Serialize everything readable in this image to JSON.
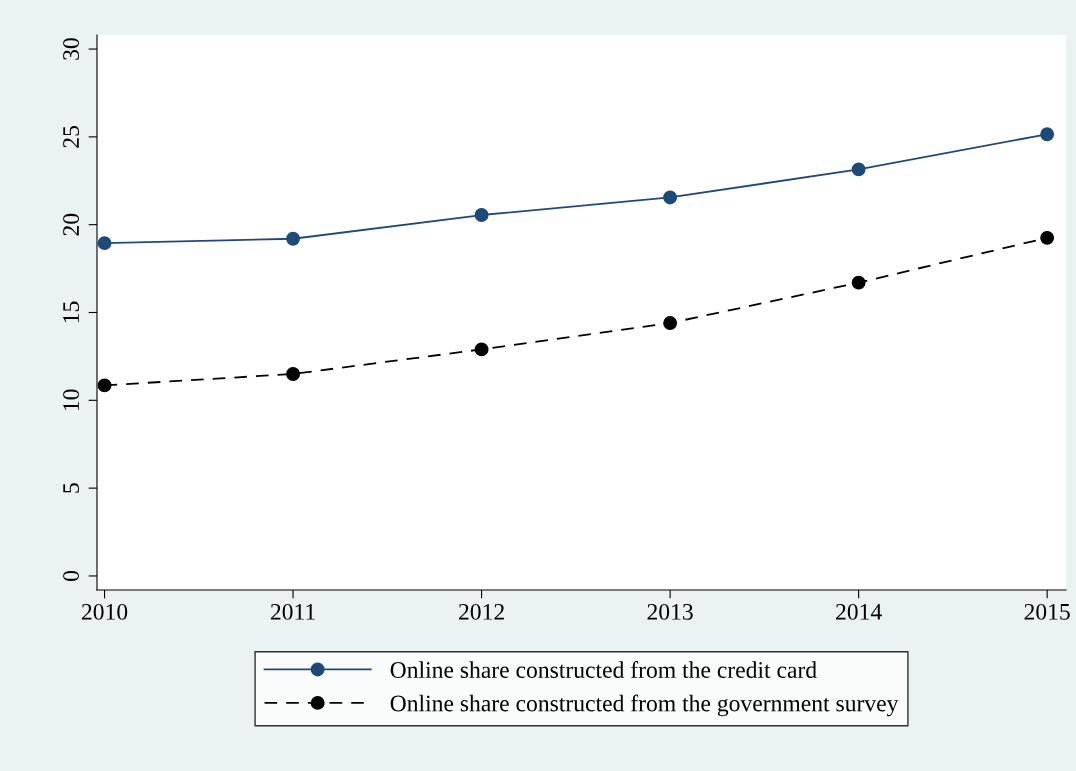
{
  "chart_data": {
    "type": "line",
    "x": [
      2010,
      2011,
      2012,
      2013,
      2014,
      2015
    ],
    "series": [
      {
        "name": "Online share constructed from the credit card",
        "color": "#1f4a78",
        "line_style": "solid",
        "values": [
          18.95,
          19.2,
          20.55,
          21.55,
          23.15,
          25.15
        ]
      },
      {
        "name": "Online share constructed from the government survey",
        "color": "#000000",
        "line_style": "dashed",
        "values": [
          10.85,
          11.5,
          12.9,
          14.4,
          16.7,
          19.25
        ]
      }
    ],
    "xlim": [
      2009.96,
      2015.1
    ],
    "xticks": [
      2010,
      2011,
      2012,
      2013,
      2014,
      2015
    ],
    "ylim": [
      -0.8,
      30.8
    ],
    "yticks": [
      0,
      5,
      10,
      15,
      20,
      25,
      30
    ],
    "marker": "circle",
    "grid": false,
    "legend": "bottom"
  }
}
